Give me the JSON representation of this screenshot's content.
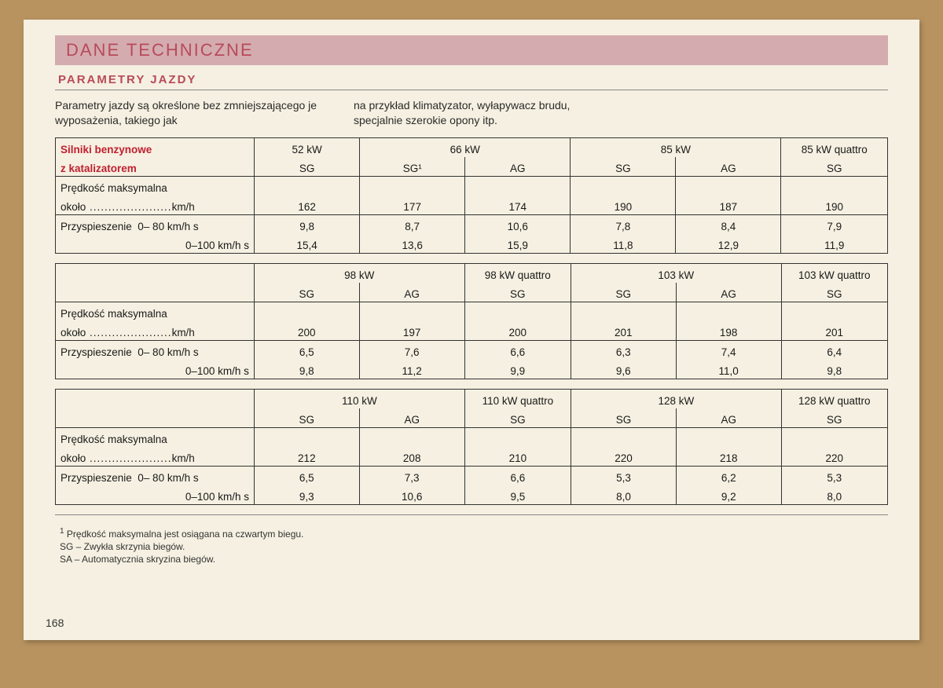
{
  "colors": {
    "page_bg": "#f5f0e1",
    "outer_bg": "#b8935f",
    "header_bar_bg": "#d4acb0",
    "accent_red": "#b84a5a",
    "text": "#1a1a1a",
    "rule": "#888",
    "border": "#333"
  },
  "typography": {
    "base_family": "Helvetica Neue, Helvetica, Arial, sans-serif",
    "title_size_pt": 22,
    "subtitle_size_pt": 15,
    "body_size_pt": 14,
    "table_size_pt": 13.5,
    "footnote_size_pt": 12
  },
  "header": {
    "title": "DANE TECHNICZNE",
    "subtitle": "PARAMETRY JAZDY"
  },
  "intro": {
    "left": "Parametry jazdy są określone bez zmniejszającego je wyposażenia, takiego jak",
    "right": "na przykład klimatyzator, wyłapywacz brudu, specjalnie szerokie opony itp."
  },
  "tables": {
    "labels": {
      "engines_header_l1": "Silniki benzynowe",
      "engines_header_l2": "z katalizatorem",
      "max_speed_l1": "Prędkość maksymalna",
      "max_speed_l2": "około",
      "max_speed_unit": "km/h",
      "accel_l1": "Przyspieszenie  0– 80 km/h s",
      "accel_l2": "0–100 km/h s"
    },
    "blocks": [
      {
        "first_block": true,
        "columns": [
          {
            "power": "52 kW",
            "trans": "SG",
            "speed": "162",
            "a80": "9,8",
            "a100": "15,4"
          },
          {
            "power": "66 kW",
            "trans": "SG¹",
            "speed": "177",
            "a80": "8,7",
            "a100": "13,6",
            "merge_power": true
          },
          {
            "power": "",
            "trans": "AG",
            "speed": "174",
            "a80": "10,6",
            "a100": "15,9"
          },
          {
            "power": "85 kW",
            "trans": "SG",
            "speed": "190",
            "a80": "7,8",
            "a100": "11,8",
            "merge_power": true
          },
          {
            "power": "",
            "trans": "AG",
            "speed": "187",
            "a80": "8,4",
            "a100": "12,9"
          },
          {
            "power": "85 kW quattro",
            "trans": "SG",
            "speed": "190",
            "a80": "7,9",
            "a100": "11,9"
          }
        ]
      },
      {
        "first_block": false,
        "columns": [
          {
            "power": "98 kW",
            "trans": "SG",
            "speed": "200",
            "a80": "6,5",
            "a100": "9,8",
            "merge_power": true
          },
          {
            "power": "",
            "trans": "AG",
            "speed": "197",
            "a80": "7,6",
            "a100": "11,2"
          },
          {
            "power": "98 kW quattro",
            "trans": "SG",
            "speed": "200",
            "a80": "6,6",
            "a100": "9,9"
          },
          {
            "power": "103 kW",
            "trans": "SG",
            "speed": "201",
            "a80": "6,3",
            "a100": "9,6",
            "merge_power": true
          },
          {
            "power": "",
            "trans": "AG",
            "speed": "198",
            "a80": "7,4",
            "a100": "11,0"
          },
          {
            "power": "103 kW quattro",
            "trans": "SG",
            "speed": "201",
            "a80": "6,4",
            "a100": "9,8"
          }
        ]
      },
      {
        "first_block": false,
        "columns": [
          {
            "power": "110 kW",
            "trans": "SG",
            "speed": "212",
            "a80": "6,5",
            "a100": "9,3",
            "merge_power": true
          },
          {
            "power": "",
            "trans": "AG",
            "speed": "208",
            "a80": "7,3",
            "a100": "10,6"
          },
          {
            "power": "110 kW quattro",
            "trans": "SG",
            "speed": "210",
            "a80": "6,6",
            "a100": "9,5"
          },
          {
            "power": "128 kW",
            "trans": "SG",
            "speed": "220",
            "a80": "5,3",
            "a100": "8,0",
            "merge_power": true
          },
          {
            "power": "",
            "trans": "AG",
            "speed": "218",
            "a80": "6,2",
            "a100": "9,2"
          },
          {
            "power": "128 kW quattro",
            "trans": "SG",
            "speed": "220",
            "a80": "5,3",
            "a100": "8,0"
          }
        ]
      }
    ]
  },
  "footnotes": {
    "note1": "Prędkość maksymalna jest osiągana na czwartym biegu.",
    "sg": "SG – Zwykła skrzynia biegów.",
    "sa": "SA – Automatycznia skryzina biegów."
  },
  "page_number": "168"
}
